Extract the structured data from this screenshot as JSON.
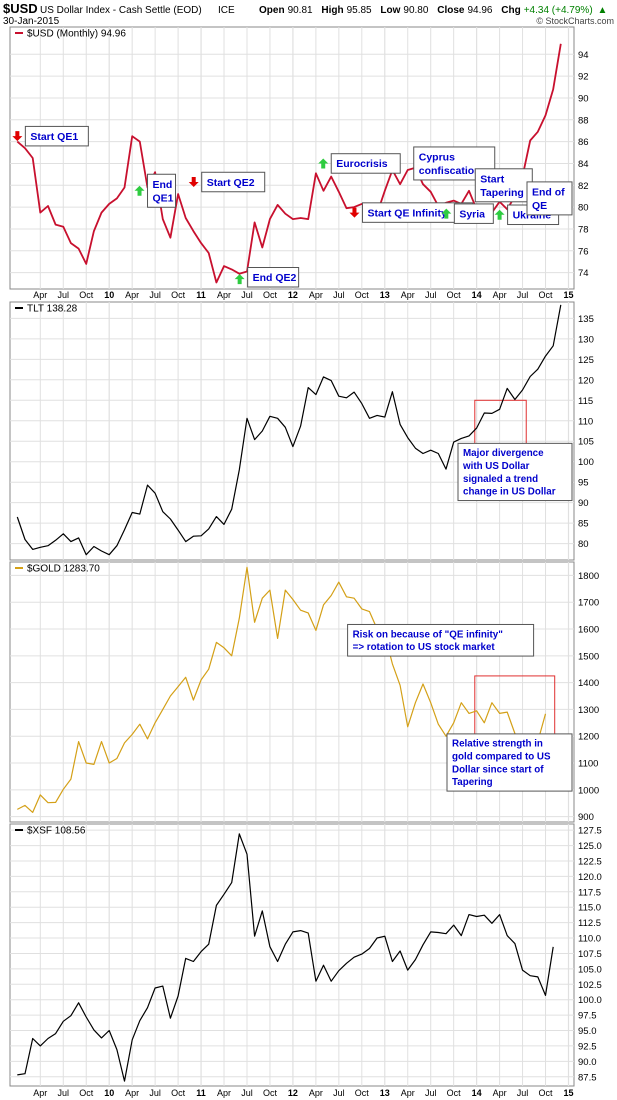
{
  "header": {
    "symbol": "$USD",
    "name": "US Dollar Index - Cash Settle (EOD)",
    "exchange": "ICE",
    "date": "30-Jan-2015",
    "open_label": "Open",
    "open": "90.81",
    "high_label": "High",
    "high": "95.85",
    "low_label": "Low",
    "low": "90.80",
    "close_label": "Close",
    "close": "94.96",
    "chg_label": "Chg",
    "chg": "+4.34 (+4.79%)",
    "chg_arrow": "▲",
    "watermark": "© StockCharts.com"
  },
  "colors": {
    "usd": "#c8102e",
    "tlt": "#000000",
    "gold": "#d4a017",
    "xsf": "#000000",
    "grid": "#e0e0e0",
    "border": "#888888",
    "label_text": "#0000cc",
    "up_arrow": "#2ecc40",
    "down_arrow": "#e00000",
    "box": "#e03030",
    "chg": "#008000"
  },
  "chart_data": [
    {
      "type": "line",
      "legend": "$USD (Monthly) 94.96",
      "ylim": [
        72.5,
        96.5
      ],
      "yticks": [
        74,
        76,
        78,
        80,
        82,
        84,
        86,
        88,
        90,
        92,
        94
      ],
      "x_start": 2009.0,
      "x_step": 0.08333,
      "values": [
        86.0,
        85.4,
        84.5,
        79.5,
        80.1,
        78.4,
        78.2,
        76.7,
        76.2,
        74.8,
        77.8,
        79.5,
        80.3,
        80.8,
        81.8,
        86.5,
        86.0,
        81.8,
        83.2,
        78.9,
        77.2,
        81.2,
        79.0,
        77.8,
        76.7,
        75.8,
        73.1,
        74.6,
        74.3,
        73.9,
        74.1,
        78.6,
        76.3,
        78.9,
        80.2,
        79.4,
        78.9,
        79.0,
        78.9,
        83.1,
        81.5,
        82.8,
        81.4,
        79.9,
        80.0,
        80.3,
        80.0,
        79.4,
        81.5,
        83.4,
        82.1,
        83.4,
        83.6,
        82.1,
        81.4,
        80.1,
        80.4,
        80.6,
        80.3,
        81.5,
        79.8,
        80.1,
        79.5,
        80.5,
        79.8,
        81.0,
        82.8,
        86.1,
        86.9,
        88.4,
        90.8,
        94.96
      ],
      "xticks": [
        {
          "x": 2009.25,
          "label": "Apr",
          "bold": false
        },
        {
          "x": 2009.5,
          "label": "Jul",
          "bold": false
        },
        {
          "x": 2009.75,
          "label": "Oct",
          "bold": false
        },
        {
          "x": 2010.0,
          "label": "10",
          "bold": true
        },
        {
          "x": 2010.25,
          "label": "Apr",
          "bold": false
        },
        {
          "x": 2010.5,
          "label": "Jul",
          "bold": false
        },
        {
          "x": 2010.75,
          "label": "Oct",
          "bold": false
        },
        {
          "x": 2011.0,
          "label": "11",
          "bold": true
        },
        {
          "x": 2011.25,
          "label": "Apr",
          "bold": false
        },
        {
          "x": 2011.5,
          "label": "Jul",
          "bold": false
        },
        {
          "x": 2011.75,
          "label": "Oct",
          "bold": false
        },
        {
          "x": 2012.0,
          "label": "12",
          "bold": true
        },
        {
          "x": 2012.25,
          "label": "Apr",
          "bold": false
        },
        {
          "x": 2012.5,
          "label": "Jul",
          "bold": false
        },
        {
          "x": 2012.75,
          "label": "Oct",
          "bold": false
        },
        {
          "x": 2013.0,
          "label": "13",
          "bold": true
        },
        {
          "x": 2013.25,
          "label": "Apr",
          "bold": false
        },
        {
          "x": 2013.5,
          "label": "Jul",
          "bold": false
        },
        {
          "x": 2013.75,
          "label": "Oct",
          "bold": false
        },
        {
          "x": 2014.0,
          "label": "14",
          "bold": true
        },
        {
          "x": 2014.25,
          "label": "Apr",
          "bold": false
        },
        {
          "x": 2014.5,
          "label": "Jul",
          "bold": false
        },
        {
          "x": 2014.75,
          "label": "Oct",
          "bold": false
        },
        {
          "x": 2015.0,
          "label": "15",
          "bold": true
        }
      ],
      "annotations": [
        {
          "lines": [
            "Start QE1"
          ],
          "x": 2009.0,
          "y": 86.5,
          "arrow": "down"
        },
        {
          "lines": [
            "End",
            "QE1"
          ],
          "x": 2010.33,
          "y": 81.5,
          "arrow": "up"
        },
        {
          "lines": [
            "Start QE2"
          ],
          "x": 2010.92,
          "y": 82.3,
          "arrow": "down"
        },
        {
          "lines": [
            "End QE2"
          ],
          "x": 2011.42,
          "y": 73.4,
          "arrow": "up"
        },
        {
          "lines": [
            "Eurocrisis"
          ],
          "x": 2012.33,
          "y": 84.0,
          "arrow": "up"
        },
        {
          "lines": [
            "Start QE Infinity"
          ],
          "x": 2012.67,
          "y": 79.5,
          "arrow": "down"
        },
        {
          "lines": [
            "Cyprus",
            "confiscation"
          ],
          "x": 2013.25,
          "y": 84.0,
          "arrow": "none"
        },
        {
          "lines": [
            "Syria"
          ],
          "x": 2013.67,
          "y": 79.4,
          "arrow": "up"
        },
        {
          "lines": [
            "Start",
            "Tapering"
          ],
          "x": 2013.92,
          "y": 82.0,
          "arrow": "none"
        },
        {
          "lines": [
            "Ukraine"
          ],
          "x": 2014.25,
          "y": 79.3,
          "arrow": "up"
        },
        {
          "lines": [
            "End of",
            "QE"
          ],
          "x": 2014.75,
          "y": 80.8,
          "arrow": "left"
        }
      ]
    },
    {
      "type": "line",
      "legend": "TLT 138.28",
      "ylim": [
        76,
        139
      ],
      "yticks": [
        80,
        85,
        90,
        95,
        100,
        105,
        110,
        115,
        120,
        125,
        130,
        135
      ],
      "x_start": 2009.0,
      "x_step": 0.08333,
      "values": [
        86.5,
        81.0,
        78.6,
        79.1,
        79.5,
        80.8,
        82.4,
        80.5,
        81.4,
        77.3,
        79.3,
        78.2,
        77.3,
        79.5,
        83.4,
        87.6,
        87.2,
        94.3,
        92.3,
        87.8,
        86.0,
        83.3,
        80.5,
        81.8,
        81.9,
        83.6,
        86.6,
        84.7,
        88.4,
        98.0,
        110.6,
        105.4,
        107.5,
        111.1,
        110.6,
        108.4,
        103.7,
        108.7,
        118.1,
        116.4,
        120.7,
        119.8,
        116.0,
        115.6,
        117.0,
        114.2,
        110.6,
        111.3,
        110.9,
        117.1,
        109.1,
        105.9,
        103.3,
        102.0,
        102.8,
        102.0,
        98.2,
        104.8,
        105.7,
        106.3,
        108.2,
        111.9,
        111.8,
        112.8,
        117.9,
        115.2,
        117.5,
        120.8,
        122.6,
        125.8,
        128.3,
        138.28
      ],
      "annotations": [
        {
          "lines": [
            "Major divergence",
            "with US Dollar",
            "signaled a trend",
            "change in US Dollar"
          ],
          "x": 2013.9,
          "y": 97.5
        }
      ],
      "highlight": {
        "x0": 2013.98,
        "x1": 2014.54,
        "y0": 97.5,
        "y1": 115.0
      }
    },
    {
      "type": "line",
      "legend": "$GOLD 1283.70",
      "ylim": [
        880,
        1850
      ],
      "yticks": [
        900,
        1000,
        1100,
        1200,
        1300,
        1400,
        1500,
        1600,
        1700,
        1800
      ],
      "x_start": 2009.0,
      "x_step": 0.08333,
      "values": [
        927,
        942,
        916,
        981,
        952,
        953,
        1002,
        1040,
        1180,
        1100,
        1095,
        1180,
        1100,
        1117,
        1175,
        1207,
        1245,
        1190,
        1250,
        1300,
        1350,
        1385,
        1420,
        1335,
        1410,
        1450,
        1550,
        1530,
        1500,
        1640,
        1830,
        1625,
        1715,
        1745,
        1565,
        1745,
        1710,
        1670,
        1660,
        1595,
        1690,
        1725,
        1775,
        1720,
        1715,
        1675,
        1665,
        1600,
        1580,
        1470,
        1390,
        1235,
        1325,
        1395,
        1325,
        1245,
        1200,
        1250,
        1325,
        1285,
        1295,
        1250,
        1325,
        1285,
        1290,
        1210,
        1175,
        1165,
        1180,
        1283.7
      ],
      "annotations": [
        {
          "lines": [
            "Risk on because of \"QE infinity\"",
            "=> rotation to US stock market"
          ],
          "x": 2012.53,
          "y": 1558
        },
        {
          "lines": [
            "Relative strength in",
            "gold compared to US",
            "Dollar since start of",
            "Tapering"
          ],
          "x": 2013.91,
          "y": 1102
        }
      ],
      "highlight": {
        "x0": 2013.98,
        "x1": 2014.85,
        "y0": 1135,
        "y1": 1425
      }
    },
    {
      "type": "line",
      "legend": "$XSF 108.56",
      "ylim": [
        86,
        128.5
      ],
      "yticks": [
        87.5,
        90.0,
        92.5,
        95.0,
        97.5,
        100.0,
        102.5,
        105.0,
        107.5,
        110.0,
        112.5,
        115.0,
        117.5,
        120.0,
        122.5,
        125.0,
        127.5
      ],
      "x_start": 2009.0,
      "x_step": 0.08333,
      "values": [
        87.8,
        88.0,
        93.7,
        92.5,
        93.7,
        94.5,
        96.5,
        97.4,
        99.5,
        97.2,
        95.1,
        93.8,
        95.0,
        91.9,
        86.8,
        93.5,
        96.6,
        98.7,
        101.9,
        102.2,
        97.0,
        100.6,
        106.7,
        106.2,
        107.8,
        109.0,
        115.3,
        117.1,
        119.0,
        126.9,
        123.6,
        110.3,
        114.4,
        108.6,
        106.2,
        109.0,
        111.0,
        111.2,
        110.8,
        103.0,
        105.6,
        103.0,
        104.7,
        105.9,
        106.9,
        107.4,
        108.3,
        110.0,
        110.3,
        106.2,
        107.9,
        104.8,
        106.5,
        108.9,
        111.0,
        110.9,
        110.7,
        112.1,
        110.4,
        113.8,
        113.5,
        113.7,
        112.4,
        113.8,
        110.4,
        109.1,
        104.8,
        103.9,
        103.7,
        100.7,
        108.56
      ]
    }
  ]
}
